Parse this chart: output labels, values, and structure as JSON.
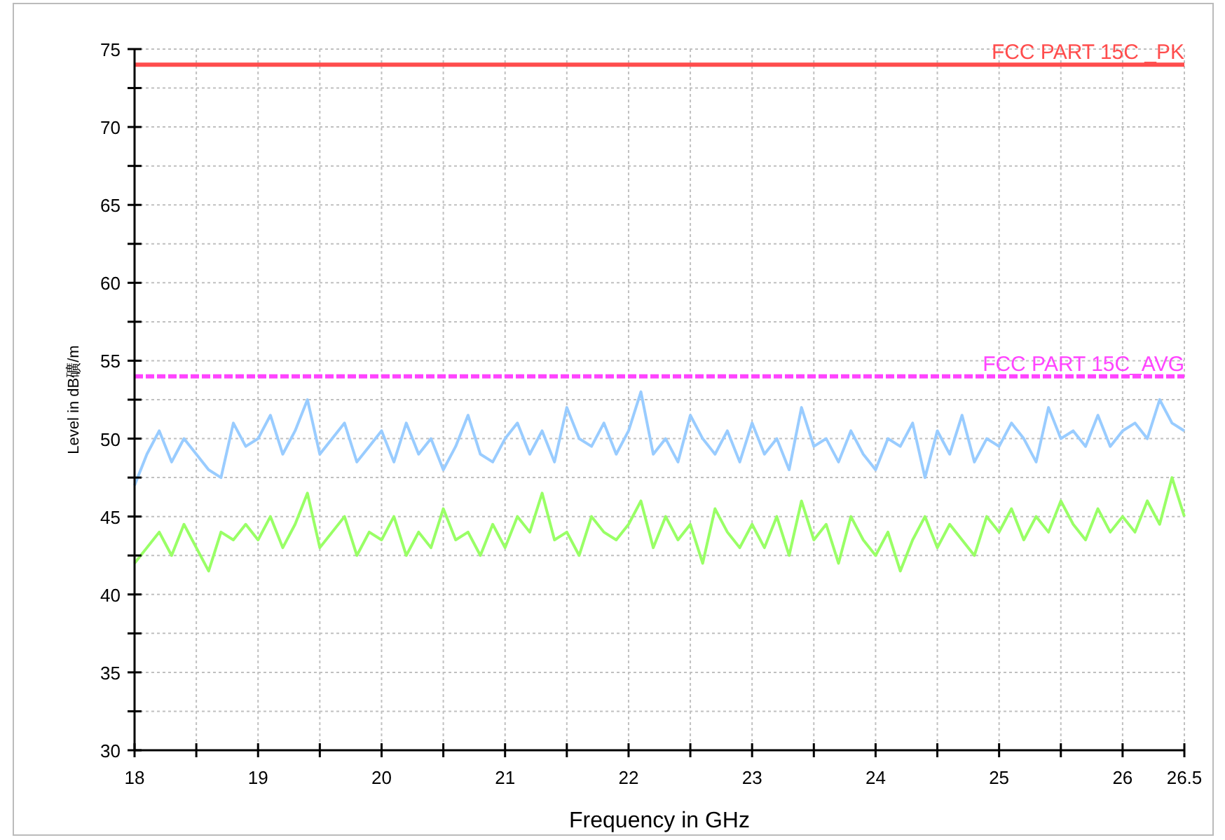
{
  "chart_data": {
    "type": "line",
    "xlabel": "Frequency in GHz",
    "ylabel": "Level in dB礦/m",
    "grid": true,
    "xlim": [
      18,
      26.5
    ],
    "ylim": [
      30,
      75
    ],
    "xticks": [
      18,
      {
        "value": 18.5,
        "label": null
      },
      19,
      {
        "value": 19.5,
        "label": null
      },
      20,
      {
        "value": 20.5,
        "label": null
      },
      21,
      {
        "value": 21.5,
        "label": null
      },
      22,
      {
        "value": 22.5,
        "label": null
      },
      23,
      {
        "value": 23.5,
        "label": null
      },
      24,
      {
        "value": 24.5,
        "label": null
      },
      25,
      {
        "value": 25.5,
        "label": null
      },
      26,
      26.5
    ],
    "yticks": [
      30,
      {
        "value": 32.5,
        "label": null
      },
      35,
      {
        "value": 37.5,
        "label": null
      },
      40,
      {
        "value": 42.5,
        "label": null
      },
      45,
      {
        "value": 47.5,
        "label": null
      },
      50,
      {
        "value": 52.5,
        "label": null
      },
      55,
      {
        "value": 57.5,
        "label": null
      },
      60,
      {
        "value": 62.5,
        "label": null
      },
      65,
      {
        "value": 67.5,
        "label": null
      },
      70,
      {
        "value": 72.5,
        "label": null
      },
      75
    ],
    "x": [
      18.0,
      18.1,
      18.2,
      18.3,
      18.4,
      18.5,
      18.6,
      18.7,
      18.8,
      18.9,
      19.0,
      19.1,
      19.2,
      19.3,
      19.4,
      19.5,
      19.6,
      19.7,
      19.8,
      19.9,
      20.0,
      20.1,
      20.2,
      20.3,
      20.4,
      20.5,
      20.6,
      20.7,
      20.8,
      20.9,
      21.0,
      21.1,
      21.2,
      21.3,
      21.4,
      21.5,
      21.6,
      21.7,
      21.8,
      21.9,
      22.0,
      22.1,
      22.2,
      22.3,
      22.4,
      22.5,
      22.6,
      22.7,
      22.8,
      22.9,
      23.0,
      23.1,
      23.2,
      23.3,
      23.4,
      23.5,
      23.6,
      23.7,
      23.8,
      23.9,
      24.0,
      24.1,
      24.2,
      24.3,
      24.4,
      24.5,
      24.6,
      24.7,
      24.8,
      24.9,
      25.0,
      25.1,
      25.2,
      25.3,
      25.4,
      25.5,
      25.6,
      25.7,
      25.8,
      25.9,
      26.0,
      26.1,
      26.2,
      26.3,
      26.4,
      26.5
    ],
    "series": [
      {
        "color": "#99ccff",
        "values": [
          47,
          49,
          50.5,
          48.5,
          50,
          49,
          48,
          47.5,
          51,
          49.5,
          50,
          51.5,
          49,
          50.5,
          52.5,
          49,
          50,
          51,
          48.5,
          49.5,
          50.5,
          48.5,
          51,
          49,
          50,
          48,
          49.5,
          51.5,
          49,
          48.5,
          50,
          51,
          49,
          50.5,
          48.5,
          52,
          50,
          49.5,
          51,
          49,
          50.5,
          53,
          49,
          50,
          48.5,
          51.5,
          50,
          49,
          50.5,
          48.5,
          51,
          49,
          50,
          48,
          52,
          49.5,
          50,
          48.5,
          50.5,
          49,
          48,
          50,
          49.5,
          51,
          47.5,
          50.5,
          49,
          51.5,
          48.5,
          50,
          49.5,
          51,
          50,
          48.5,
          52,
          50,
          50.5,
          49.5,
          51.5,
          49.5,
          50.5,
          51,
          50,
          52.5,
          51,
          50.5
        ]
      },
      {
        "color": "#99ff66",
        "values": [
          42,
          43,
          44,
          42.5,
          44.5,
          43,
          41.5,
          44,
          43.5,
          44.5,
          43.5,
          45,
          43,
          44.5,
          46.5,
          43,
          44,
          45,
          42.5,
          44,
          43.5,
          45,
          42.5,
          44,
          43,
          45.5,
          43.5,
          44,
          42.5,
          44.5,
          43,
          45,
          44,
          46.5,
          43.5,
          44,
          42.5,
          45,
          44,
          43.5,
          44.5,
          46,
          43,
          45,
          43.5,
          44.5,
          42,
          45.5,
          44,
          43,
          44.5,
          43,
          45,
          42.5,
          46,
          43.5,
          44.5,
          42,
          45,
          43.5,
          42.5,
          44,
          41.5,
          43.5,
          45,
          43,
          44.5,
          43.5,
          42.5,
          45,
          44,
          45.5,
          43.5,
          45,
          44,
          46,
          44.5,
          43.5,
          45.5,
          44,
          45,
          44,
          46,
          44.5,
          47.5,
          45
        ]
      }
    ],
    "ref_lines": [
      {
        "axis": "y",
        "value": 74,
        "label": "FCC PART 15C _PK",
        "color": "#ff4d4d",
        "line_style": "solid"
      },
      {
        "axis": "y",
        "value": 54,
        "label": "FCC PART 15C_AVG",
        "color": "#ff44ff",
        "line_style": "dashed"
      }
    ]
  }
}
